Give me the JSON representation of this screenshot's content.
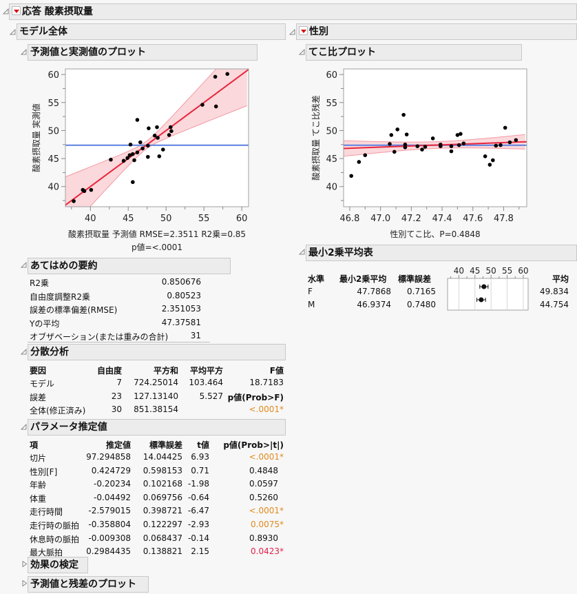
{
  "report": {
    "title": "応答 酸素摂取量",
    "whole_model": {
      "title": "モデル全体",
      "actual_by_predicted": {
        "title": "予測値と実測値のプロット",
        "xlabel_line1": "酸素摂取量 予測値 RMSE=2.3511  R2乗=0.85",
        "xlabel_line2": "p値=<.0001",
        "ylabel": "酸素摂取量 実測値"
      },
      "summary_of_fit": {
        "title": "あてはめの要約",
        "rows": [
          {
            "label": "R2乗",
            "value": "0.850676"
          },
          {
            "label": "自由度調整R2乗",
            "value": "0.80523"
          },
          {
            "label": "誤差の標準偏差(RMSE)",
            "value": "2.351053"
          },
          {
            "label": "Yの平均",
            "value": "47.37581"
          },
          {
            "label": "オブザベーション(または重みの合計)",
            "value": "31"
          }
        ]
      },
      "anova": {
        "title": "分散分析",
        "headers": [
          "要因",
          "自由度",
          "平方和",
          "平均平方",
          "F値"
        ],
        "rows": [
          {
            "source": "モデル",
            "df": "7",
            "ss": "724.25014",
            "ms": "103.464",
            "f": "18.7183"
          },
          {
            "source": "誤差",
            "df": "23",
            "ss": "127.13140",
            "ms": "5.527",
            "f": "p値(Prob>F)"
          },
          {
            "source": "全体(修正済み)",
            "df": "30",
            "ss": "851.38154",
            "ms": "",
            "f": "<.0001*"
          }
        ]
      },
      "parameter_estimates": {
        "title": "パラメータ推定値",
        "headers": [
          "項",
          "推定値",
          "標準誤差",
          "t値",
          "p値(Prob>|t|)"
        ],
        "rows": [
          {
            "term": "切片",
            "est": "97.294858",
            "se": "14.04425",
            "t": "6.93",
            "p": "<.0001*",
            "sig": "orange"
          },
          {
            "term": "性別[F]",
            "est": "0.424729",
            "se": "0.598153",
            "t": "0.71",
            "p": "0.4848",
            "sig": ""
          },
          {
            "term": "年齢",
            "est": "-0.20234",
            "se": "0.102168",
            "t": "-1.98",
            "p": "0.0597",
            "sig": ""
          },
          {
            "term": "体重",
            "est": "-0.04492",
            "se": "0.069756",
            "t": "-0.64",
            "p": "0.5260",
            "sig": ""
          },
          {
            "term": "走行時間",
            "est": "-2.579015",
            "se": "0.398721",
            "t": "-6.47",
            "p": "<.0001*",
            "sig": "orange"
          },
          {
            "term": "走行時の脈拍",
            "est": "-0.358804",
            "se": "0.122297",
            "t": "-2.93",
            "p": "0.0075*",
            "sig": "orange"
          },
          {
            "term": "休息時の脈拍",
            "est": "-0.009308",
            "se": "0.068437",
            "t": "-0.14",
            "p": "0.8930",
            "sig": ""
          },
          {
            "term": "最大脈拍",
            "est": "0.2984435",
            "se": "0.138821",
            "t": "2.15",
            "p": "0.0423*",
            "sig": "red"
          }
        ]
      },
      "effect_tests": {
        "title": "効果の検定"
      },
      "residual_by_predicted": {
        "title": "予測値と残差のプロット"
      }
    },
    "sex": {
      "title": "性別",
      "leverage_plot": {
        "title": "てこ比プロット",
        "xlabel": "性別てこ比、P=0.4848",
        "ylabel": "酸素摂取量 てこ比残差"
      },
      "ls_means": {
        "title": "最小2乗平均表",
        "headers": [
          "水準",
          "最小2乗平均",
          "標準誤差",
          "平均"
        ],
        "axis_ticks": [
          "40",
          "45",
          "50",
          "55",
          "60"
        ],
        "rows": [
          {
            "level": "F",
            "lsmean": "47.7868",
            "se": "0.7165",
            "mean": "49.834"
          },
          {
            "level": "M",
            "lsmean": "46.9374",
            "se": "0.7480",
            "mean": "44.754"
          }
        ]
      }
    }
  },
  "colors": {
    "fit_line": "#e8243c",
    "confidence_band": "#f9c8cc",
    "mean_line": "#5b7fe0",
    "significant_orange": "#e08a1e",
    "significant_red": "#e0224a"
  },
  "chart_data": [
    {
      "type": "scatter",
      "title": "予測値と実測値のプロット",
      "xlabel": "酸素摂取量 予測値 RMSE=2.3511  R2乗=0.85 p値=<.0001",
      "ylabel": "酸素摂取量 実測値",
      "x_ticks": [
        40,
        45,
        50,
        55,
        60
      ],
      "y_ticks": [
        40,
        45,
        50,
        55,
        60
      ],
      "xlim": [
        36.7,
        60.9
      ],
      "ylim": [
        36.4,
        61
      ],
      "mean_line_y": 47.376,
      "fit_line": {
        "slope": 1,
        "intercept": 0
      },
      "points": [
        [
          37.8,
          37.4
        ],
        [
          39.0,
          39.4
        ],
        [
          39.2,
          39.2
        ],
        [
          40.1,
          39.4
        ],
        [
          42.7,
          44.8
        ],
        [
          44.4,
          44.6
        ],
        [
          44.9,
          45.1
        ],
        [
          45.2,
          45.6
        ],
        [
          45.3,
          47.5
        ],
        [
          45.6,
          45.8
        ],
        [
          45.6,
          40.8
        ],
        [
          45.8,
          44.7
        ],
        [
          46.2,
          46.1
        ],
        [
          46.2,
          51.9
        ],
        [
          46.6,
          47.9
        ],
        [
          46.9,
          46.8
        ],
        [
          47.6,
          45.3
        ],
        [
          47.6,
          47.3
        ],
        [
          47.7,
          50.4
        ],
        [
          48.5,
          49.1
        ],
        [
          48.8,
          50.6
        ],
        [
          48.9,
          48.7
        ],
        [
          49.1,
          45.4
        ],
        [
          49.6,
          46.6
        ],
        [
          50.4,
          49.2
        ],
        [
          50.6,
          50.6
        ],
        [
          50.7,
          49.9
        ],
        [
          54.8,
          54.6
        ],
        [
          56.5,
          59.6
        ],
        [
          56.6,
          54.3
        ],
        [
          58.1,
          60.1
        ]
      ]
    },
    {
      "type": "scatter",
      "title": "てこ比プロット",
      "xlabel": "性別てこ比、P=0.4848",
      "ylabel": "酸素摂取量 てこ比残差",
      "x_ticks": [
        46.8,
        47.0,
        47.2,
        47.4,
        47.6,
        47.8
      ],
      "y_ticks": [
        40,
        45,
        50,
        55,
        60
      ],
      "xlim": [
        46.76,
        47.95
      ],
      "ylim": [
        36.4,
        61
      ],
      "mean_line_y": 47.376,
      "fit_line": {
        "x0": 46.76,
        "y0": 46.8,
        "x1": 47.95,
        "y1": 48.0
      },
      "points": [
        [
          46.81,
          41.9
        ],
        [
          46.86,
          44.4
        ],
        [
          46.9,
          45.6
        ],
        [
          47.06,
          47.6
        ],
        [
          47.07,
          49.2
        ],
        [
          47.09,
          46.2
        ],
        [
          47.11,
          50.2
        ],
        [
          47.15,
          52.8
        ],
        [
          47.16,
          47.5
        ],
        [
          47.16,
          47.0
        ],
        [
          47.17,
          49.3
        ],
        [
          47.24,
          47.2
        ],
        [
          47.27,
          46.6
        ],
        [
          47.29,
          47.1
        ],
        [
          47.34,
          48.6
        ],
        [
          47.39,
          47.2
        ],
        [
          47.39,
          47.5
        ],
        [
          47.46,
          46.3
        ],
        [
          47.46,
          47.2
        ],
        [
          47.5,
          49.2
        ],
        [
          47.51,
          47.4
        ],
        [
          47.52,
          49.4
        ],
        [
          47.54,
          47.7
        ],
        [
          47.68,
          45.4
        ],
        [
          47.71,
          43.9
        ],
        [
          47.73,
          44.7
        ],
        [
          47.75,
          47.3
        ],
        [
          47.78,
          47.4
        ],
        [
          47.81,
          50.5
        ],
        [
          47.84,
          47.9
        ],
        [
          47.88,
          48.3
        ]
      ]
    },
    {
      "type": "errorbar",
      "title": "最小2乗平均表",
      "x_ticks": [
        40,
        45,
        50,
        55,
        60
      ],
      "categories": [
        "F",
        "M"
      ],
      "values": [
        47.7868,
        46.9374
      ],
      "errors": [
        0.7165,
        0.748
      ]
    }
  ]
}
